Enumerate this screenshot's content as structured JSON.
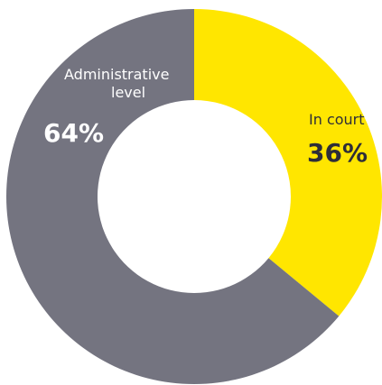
{
  "chart_data": {
    "type": "pie",
    "donut": true,
    "slices": [
      {
        "label_lines": [
          "In court"
        ],
        "value": 36,
        "value_label": "36%",
        "color": "#ffe600",
        "text_color": "#2e2e38"
      },
      {
        "label_lines": [
          "Administrative",
          "level"
        ],
        "value": 64,
        "value_label": "64%",
        "color": "#747480",
        "text_color": "#ffffff"
      }
    ],
    "start": "12 o'clock",
    "direction": "clockwise",
    "legend": "none"
  }
}
